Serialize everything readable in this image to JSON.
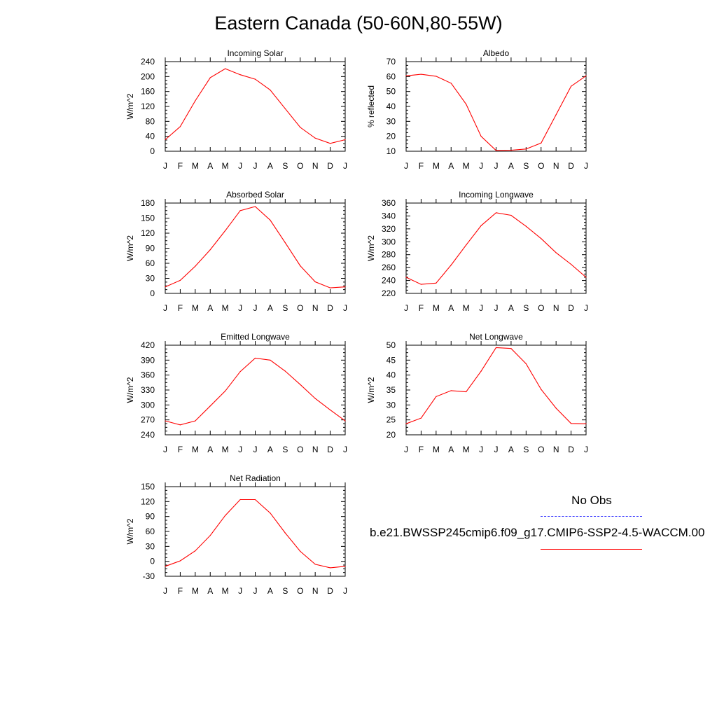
{
  "title": "Eastern Canada (50-60N,80-55W)",
  "legend": {
    "obs_label": "No Obs",
    "model_label": "b.e21.BWSSP245cmip6.f09_g17.CMIP6-SSP2-4.5-WACCM.00",
    "obs_color": "#3b3bff",
    "model_color": "#ff0000"
  },
  "chart_data": [
    {
      "type": "line",
      "title": "Incoming Solar",
      "ylabel": "W/m^2",
      "categories": [
        "J",
        "F",
        "M",
        "A",
        "M",
        "J",
        "J",
        "A",
        "S",
        "O",
        "N",
        "D",
        "J"
      ],
      "ylim": [
        0,
        240
      ],
      "yticks": [
        0,
        40,
        80,
        120,
        160,
        200,
        240
      ],
      "series": [
        {
          "values": [
            31,
            66,
            135,
            197,
            221,
            205,
            193,
            164,
            114,
            64,
            35,
            21,
            31
          ]
        }
      ]
    },
    {
      "type": "line",
      "title": "Albedo",
      "ylabel": "% reflected",
      "categories": [
        "J",
        "F",
        "M",
        "A",
        "M",
        "J",
        "J",
        "A",
        "S",
        "O",
        "N",
        "D",
        "J"
      ],
      "ylim": [
        10,
        70
      ],
      "yticks": [
        10,
        20,
        30,
        40,
        50,
        60,
        70
      ],
      "series": [
        {
          "values": [
            60.5,
            61.5,
            60.2,
            55.5,
            41.5,
            20.0,
            10.5,
            10.7,
            11.5,
            15.5,
            34.5,
            53.5,
            60.5
          ]
        }
      ]
    },
    {
      "type": "line",
      "title": "Absorbed Solar",
      "ylabel": "W/m^2",
      "categories": [
        "J",
        "F",
        "M",
        "A",
        "M",
        "J",
        "J",
        "A",
        "S",
        "O",
        "N",
        "D",
        "J"
      ],
      "ylim": [
        0,
        180
      ],
      "yticks": [
        0,
        30,
        60,
        90,
        120,
        150,
        180
      ],
      "series": [
        {
          "values": [
            13,
            26,
            54,
            87,
            125,
            165,
            173,
            146,
            101,
            55,
            23,
            11,
            13
          ]
        }
      ]
    },
    {
      "type": "line",
      "title": "Incoming Longwave",
      "ylabel": "W/m^2",
      "categories": [
        "J",
        "F",
        "M",
        "A",
        "M",
        "J",
        "J",
        "A",
        "S",
        "O",
        "N",
        "D",
        "J"
      ],
      "ylim": [
        220,
        360
      ],
      "yticks": [
        220,
        240,
        260,
        280,
        300,
        320,
        340,
        360
      ],
      "series": [
        {
          "values": [
            245,
            234,
            236,
            264,
            295,
            325,
            345,
            341,
            324,
            305,
            283,
            265,
            245
          ]
        }
      ]
    },
    {
      "type": "line",
      "title": "Emitted Longwave",
      "ylabel": "W/m^2",
      "categories": [
        "J",
        "F",
        "M",
        "A",
        "M",
        "J",
        "J",
        "A",
        "S",
        "O",
        "N",
        "D",
        "J"
      ],
      "ylim": [
        240,
        420
      ],
      "yticks": [
        240,
        270,
        300,
        330,
        360,
        390,
        420
      ],
      "series": [
        {
          "values": [
            268,
            260,
            268,
            298,
            328,
            367,
            394,
            390,
            368,
            341,
            313,
            290,
            268
          ]
        }
      ]
    },
    {
      "type": "line",
      "title": "Net Longwave",
      "ylabel": "W/m^2",
      "categories": [
        "J",
        "F",
        "M",
        "A",
        "M",
        "J",
        "J",
        "A",
        "S",
        "O",
        "N",
        "D",
        "J"
      ],
      "ylim": [
        20,
        50
      ],
      "yticks": [
        20,
        25,
        30,
        35,
        40,
        45,
        50
      ],
      "series": [
        {
          "values": [
            23.7,
            25.6,
            32.8,
            34.8,
            34.4,
            41.3,
            49.2,
            48.9,
            43.8,
            35.2,
            28.9,
            23.8,
            23.7
          ]
        }
      ]
    },
    {
      "type": "line",
      "title": "Net Radiation",
      "ylabel": "W/m^2",
      "categories": [
        "J",
        "F",
        "M",
        "A",
        "M",
        "J",
        "J",
        "A",
        "S",
        "O",
        "N",
        "D",
        "J"
      ],
      "ylim": [
        -30,
        150
      ],
      "yticks": [
        -30,
        0,
        30,
        60,
        90,
        120,
        150
      ],
      "series": [
        {
          "values": [
            -10,
            1,
            21,
            52,
            92,
            124,
            124,
            97,
            57,
            20,
            -6,
            -13,
            -10
          ]
        }
      ]
    }
  ]
}
